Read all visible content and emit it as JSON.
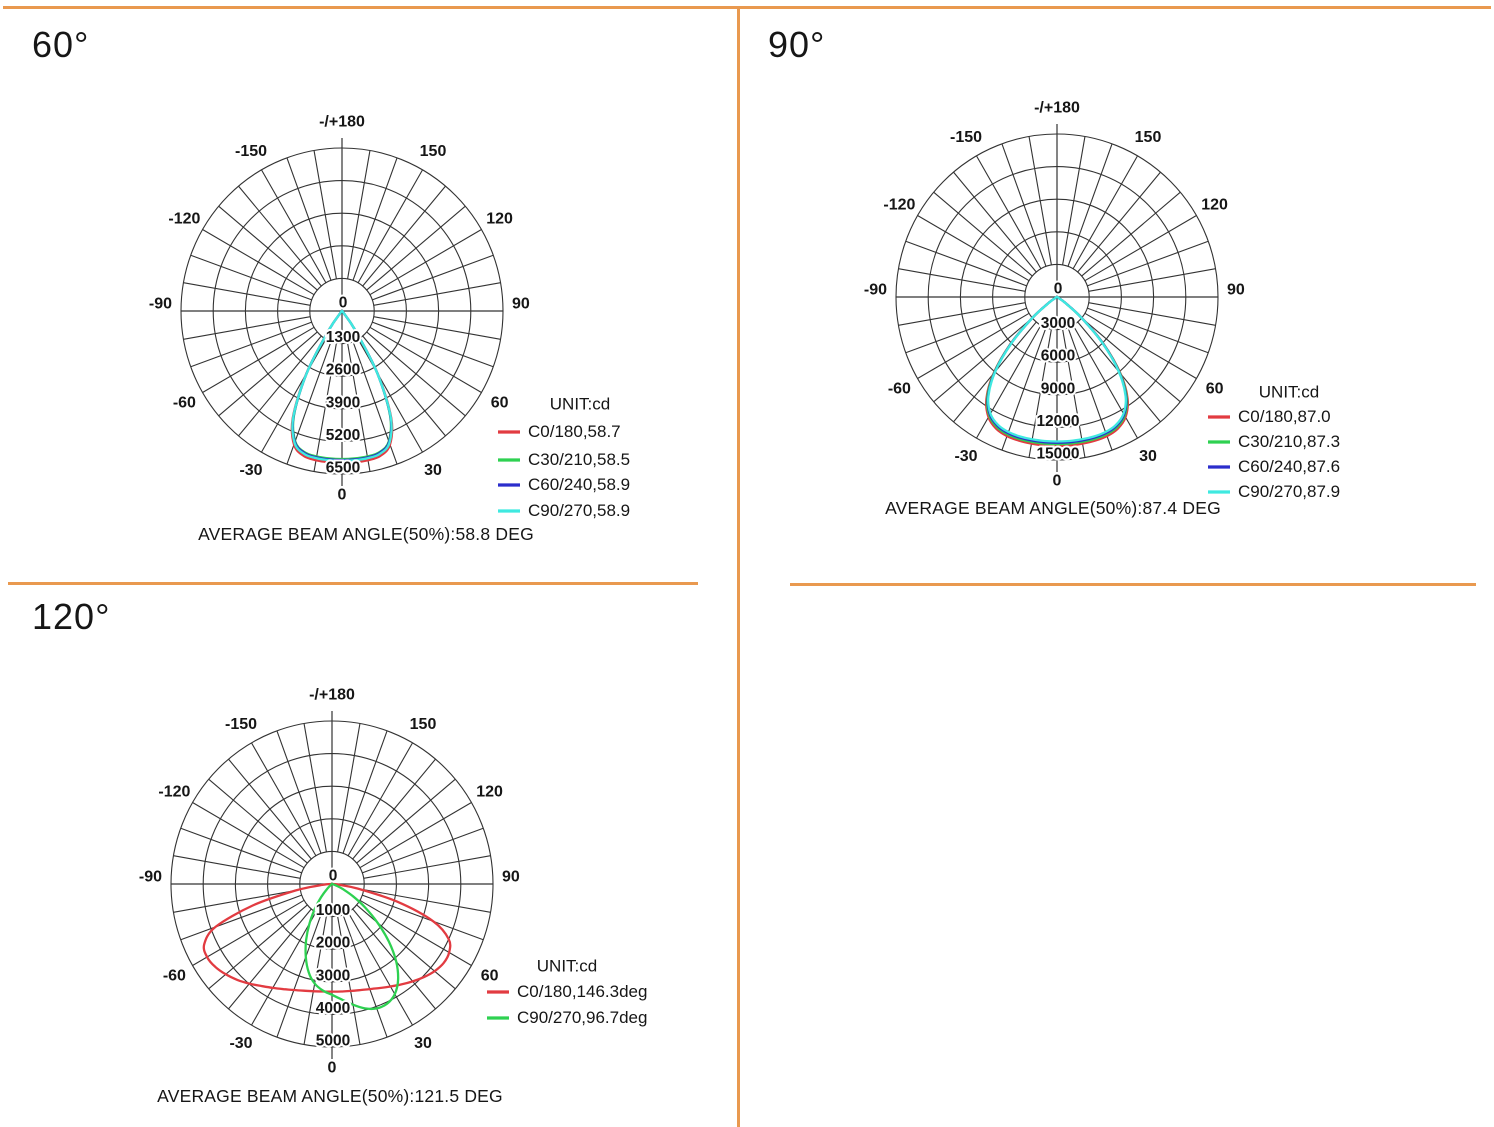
{
  "page": {
    "background": "#ffffff",
    "divider_color": "#e9994f",
    "grid_color": "#333333",
    "text_color": "#161616"
  },
  "chart_data": [
    {
      "type": "line",
      "subtype": "polar-intensity",
      "section_title": "60°",
      "unit_label": "UNIT:cd",
      "caption": "AVERAGE BEAM ANGLE(50%):58.8 DEG",
      "radial_ticks": [
        0,
        1300,
        2600,
        3900,
        5200,
        6500
      ],
      "radial_max": 6500,
      "grid": {
        "rings": 5,
        "spoke_step_deg": 10,
        "grid_on": true
      },
      "angle_ticks": [
        {
          "deg": 180,
          "label": "-/+180"
        },
        {
          "deg": -150,
          "label": "-150"
        },
        {
          "deg": 150,
          "label": "150"
        },
        {
          "deg": -120,
          "label": "-120"
        },
        {
          "deg": 120,
          "label": "120"
        },
        {
          "deg": -90,
          "label": "-90"
        },
        {
          "deg": 90,
          "label": "90"
        },
        {
          "deg": -60,
          "label": "-60"
        },
        {
          "deg": 60,
          "label": "60"
        },
        {
          "deg": -30,
          "label": "-30"
        },
        {
          "deg": 30,
          "label": "30"
        },
        {
          "deg": 0,
          "label": "0"
        }
      ],
      "angle_start_deg": -90,
      "angle_step_deg": 5,
      "legend_position": "right-bottom",
      "series": [
        {
          "name": "C0/180,58.7",
          "color": "#e23b41",
          "values": [
            0,
            0,
            0,
            0,
            0,
            0,
            0,
            0,
            0,
            20,
            90,
            920,
            2870,
            4700,
            5670,
            5980,
            6040,
            6050,
            6050,
            6050,
            6040,
            5980,
            5670,
            4700,
            2870,
            920,
            90,
            20,
            0,
            0,
            0,
            0,
            0,
            0,
            0,
            0,
            0
          ]
        },
        {
          "name": "C30/210,58.5",
          "color": "#2ed151",
          "values": [
            0,
            0,
            0,
            0,
            0,
            0,
            0,
            0,
            0,
            20,
            90,
            900,
            2800,
            4590,
            5530,
            5830,
            5890,
            5900,
            5900,
            5900,
            5890,
            5830,
            5530,
            4590,
            2800,
            900,
            90,
            20,
            0,
            0,
            0,
            0,
            0,
            0,
            0,
            0,
            0
          ]
        },
        {
          "name": "C60/240,58.9",
          "color": "#2b2dcc",
          "values": [
            0,
            0,
            0,
            0,
            0,
            0,
            0,
            0,
            0,
            20,
            90,
            910,
            2820,
            4620,
            5560,
            5860,
            5930,
            5940,
            5940,
            5940,
            5930,
            5860,
            5560,
            4620,
            2820,
            910,
            90,
            20,
            0,
            0,
            0,
            0,
            0,
            0,
            0,
            0,
            0
          ]
        },
        {
          "name": "C90/270,58.9",
          "color": "#3fe9e0",
          "values": [
            0,
            0,
            0,
            0,
            0,
            0,
            0,
            0,
            0,
            20,
            90,
            910,
            2830,
            4650,
            5600,
            5900,
            5960,
            5970,
            5970,
            5970,
            5960,
            5900,
            5600,
            4650,
            2830,
            910,
            90,
            20,
            0,
            0,
            0,
            0,
            0,
            0,
            0,
            0,
            0
          ]
        }
      ]
    },
    {
      "type": "line",
      "subtype": "polar-intensity",
      "section_title": "90°",
      "unit_label": "UNIT:cd",
      "caption": "AVERAGE BEAM ANGLE(50%):87.4 DEG",
      "radial_ticks": [
        0,
        3000,
        6000,
        9000,
        12000,
        15000
      ],
      "radial_max": 15000,
      "grid": {
        "rings": 5,
        "spoke_step_deg": 10,
        "grid_on": true
      },
      "angle_ticks": [
        {
          "deg": 180,
          "label": "-/+180"
        },
        {
          "deg": -150,
          "label": "-150"
        },
        {
          "deg": 150,
          "label": "150"
        },
        {
          "deg": -120,
          "label": "-120"
        },
        {
          "deg": 120,
          "label": "120"
        },
        {
          "deg": -90,
          "label": "-90"
        },
        {
          "deg": 90,
          "label": "90"
        },
        {
          "deg": -60,
          "label": "-60"
        },
        {
          "deg": 60,
          "label": "60"
        },
        {
          "deg": -30,
          "label": "-30"
        },
        {
          "deg": 30,
          "label": "30"
        },
        {
          "deg": 0,
          "label": "0"
        }
      ],
      "angle_start_deg": -90,
      "angle_step_deg": 5,
      "legend_position": "right-bottom",
      "series": [
        {
          "name": "C0/180,87.0",
          "color": "#e23b41",
          "values": [
            0,
            0,
            0,
            0,
            0,
            0,
            150,
            950,
            3040,
            6160,
            9220,
            11470,
            12770,
            13380,
            13620,
            13690,
            13700,
            13700,
            13700,
            13700,
            13700,
            13690,
            13620,
            13380,
            12770,
            11470,
            9220,
            6160,
            3040,
            950,
            150,
            0,
            0,
            0,
            0,
            0,
            0
          ]
        },
        {
          "name": "C30/210,87.3",
          "color": "#2ed151",
          "values": [
            0,
            0,
            0,
            0,
            0,
            0,
            150,
            940,
            3000,
            6090,
            9110,
            11340,
            12620,
            13220,
            13460,
            13530,
            13540,
            13540,
            13540,
            13540,
            13540,
            13530,
            13460,
            13220,
            12620,
            11340,
            9110,
            6090,
            3000,
            940,
            150,
            0,
            0,
            0,
            0,
            0,
            0
          ]
        },
        {
          "name": "C60/240,87.6",
          "color": "#2b2dcc",
          "values": [
            0,
            0,
            0,
            0,
            0,
            0,
            150,
            930,
            2970,
            6030,
            9020,
            11230,
            12500,
            13090,
            13330,
            13400,
            13410,
            13410,
            13410,
            13410,
            13410,
            13400,
            13330,
            13090,
            12500,
            11230,
            9020,
            6030,
            2970,
            930,
            150,
            0,
            0,
            0,
            0,
            0,
            0
          ]
        },
        {
          "name": "C90/270,87.9",
          "color": "#3fe9e0",
          "values": [
            0,
            0,
            0,
            0,
            0,
            0,
            150,
            925,
            2950,
            5980,
            8950,
            11140,
            12400,
            12990,
            13220,
            13290,
            13300,
            13300,
            13300,
            13300,
            13300,
            13290,
            13220,
            12990,
            12400,
            11140,
            8950,
            5980,
            2950,
            925,
            150,
            0,
            0,
            0,
            0,
            0,
            0
          ]
        }
      ]
    },
    {
      "type": "line",
      "subtype": "polar-intensity",
      "section_title": "120°",
      "unit_label": "UNIT:cd",
      "caption": "AVERAGE BEAM ANGLE(50%):121.5 DEG",
      "radial_ticks": [
        0,
        1000,
        2000,
        3000,
        4000,
        5000
      ],
      "radial_max": 5000,
      "grid": {
        "rings": 5,
        "spoke_step_deg": 10,
        "grid_on": true
      },
      "angle_ticks": [
        {
          "deg": 180,
          "label": "-/+180"
        },
        {
          "deg": -150,
          "label": "-150"
        },
        {
          "deg": 150,
          "label": "150"
        },
        {
          "deg": -120,
          "label": "-120"
        },
        {
          "deg": 120,
          "label": "120"
        },
        {
          "deg": -90,
          "label": "-90"
        },
        {
          "deg": 90,
          "label": "90"
        },
        {
          "deg": -60,
          "label": "-60"
        },
        {
          "deg": 60,
          "label": "60"
        },
        {
          "deg": -30,
          "label": "-30"
        },
        {
          "deg": 30,
          "label": "30"
        },
        {
          "deg": 0,
          "label": "0"
        }
      ],
      "angle_start_deg": -90,
      "angle_step_deg": 5,
      "legend_position": "right-bottom",
      "series": [
        {
          "name": "C0/180,146.3deg",
          "color": "#e23b41",
          "values": [
            0,
            300,
            1150,
            2550,
            3850,
            4380,
            4480,
            4430,
            4310,
            4160,
            3990,
            3820,
            3680,
            3560,
            3460,
            3390,
            3340,
            3310,
            3300,
            3310,
            3330,
            3370,
            3430,
            3520,
            3630,
            3760,
            3900,
            4040,
            4160,
            4230,
            4200,
            4000,
            3350,
            2100,
            800,
            180,
            0
          ]
        },
        {
          "name": "C90/270,96.7deg",
          "color": "#2ed151",
          "values": [
            0,
            0,
            0,
            0,
            0,
            0,
            0,
            0,
            60,
            220,
            520,
            930,
            1400,
            1900,
            2380,
            2800,
            3100,
            3280,
            3400,
            3560,
            3760,
            3950,
            4060,
            4050,
            3900,
            3580,
            3100,
            2500,
            1850,
            1250,
            750,
            380,
            150,
            40,
            0,
            0,
            0
          ]
        }
      ]
    }
  ]
}
